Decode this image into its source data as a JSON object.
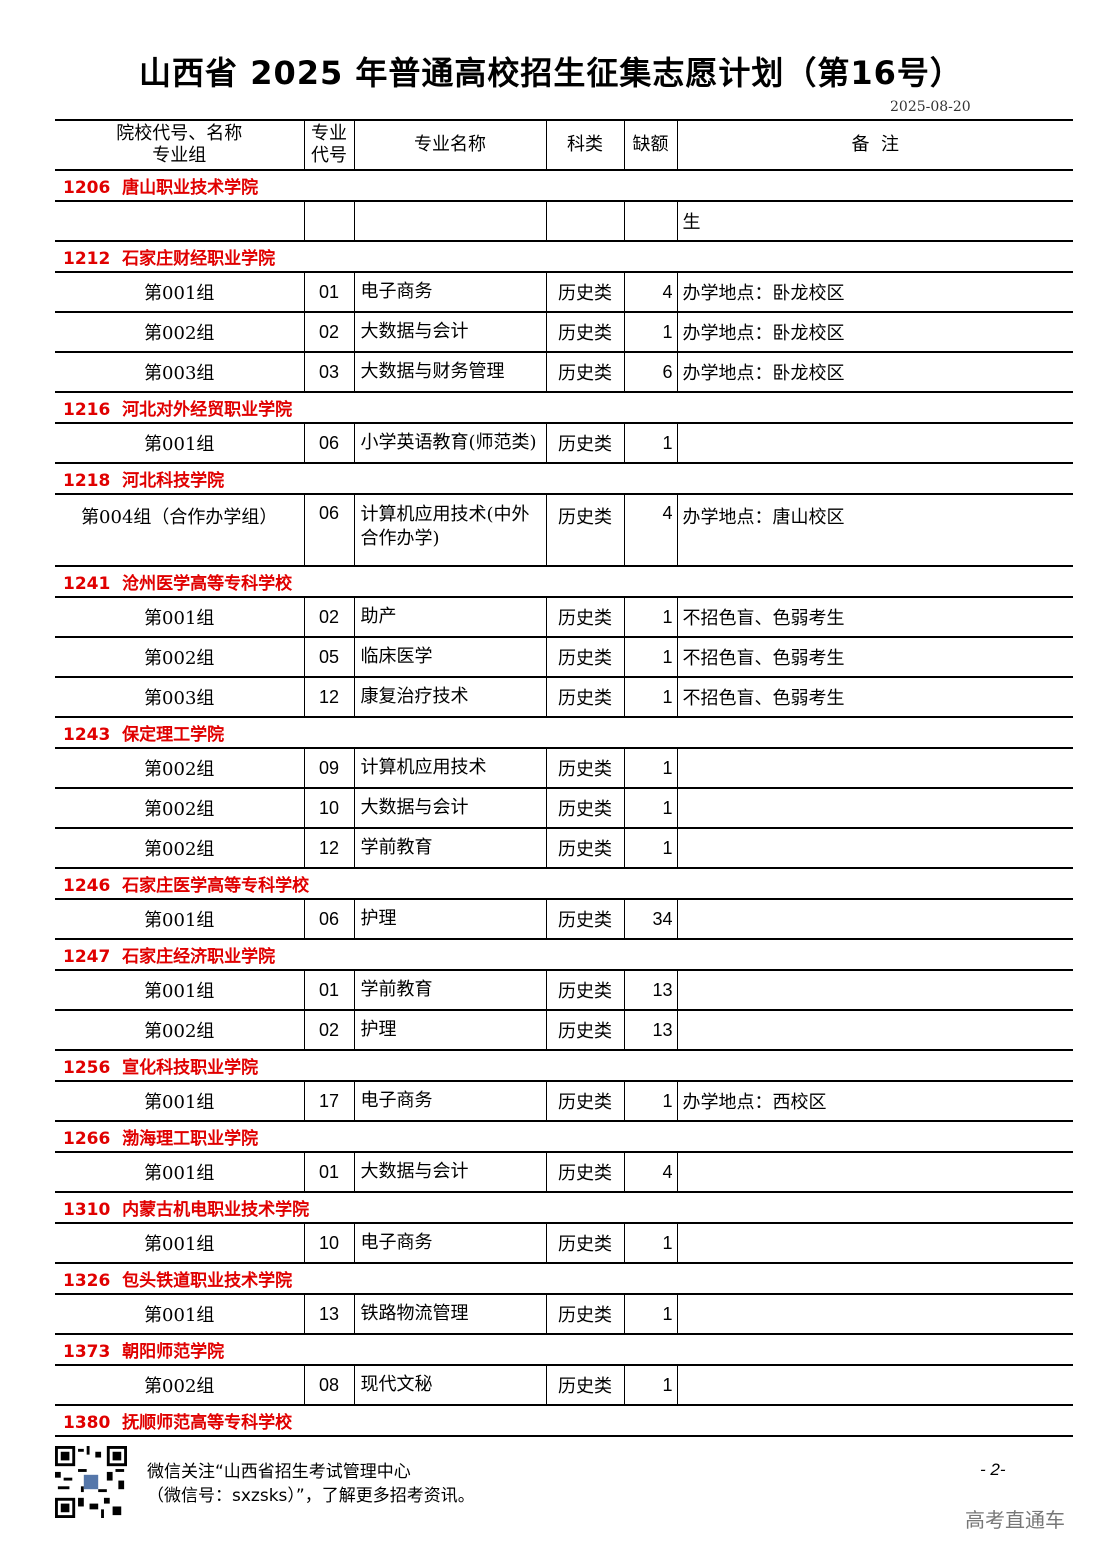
{
  "title": "山西省 2025 年普通高校招生征集志愿计划（第16号）",
  "date": "2025-08-20",
  "headers": {
    "school_line1": "院校代号、名称",
    "school_line2": "专业组",
    "major_code_line1": "专业",
    "major_code_line2": "代号",
    "major_name": "专业名称",
    "category": "科类",
    "quota": "缺额",
    "note": "备  注"
  },
  "sections": [
    {
      "school": "1206  唐山职业技术学院",
      "rows": [
        {
          "group": "",
          "code": "",
          "name": "",
          "category": "",
          "quota": "",
          "note": "生"
        }
      ]
    },
    {
      "school": "1212  石家庄财经职业学院",
      "rows": [
        {
          "group": "第001组",
          "code": "01",
          "name": "电子商务",
          "category": "历史类",
          "quota": "4",
          "note": "办学地点：卧龙校区"
        },
        {
          "group": "第002组",
          "code": "02",
          "name": "大数据与会计",
          "category": "历史类",
          "quota": "1",
          "note": "办学地点：卧龙校区"
        },
        {
          "group": "第003组",
          "code": "03",
          "name": "大数据与财务管理",
          "category": "历史类",
          "quota": "6",
          "note": "办学地点：卧龙校区"
        }
      ]
    },
    {
      "school": "1216  河北对外经贸职业学院",
      "rows": [
        {
          "group": "第001组",
          "code": "06",
          "name": "小学英语教育(师范类)",
          "category": "历史类",
          "quota": "1",
          "note": ""
        }
      ]
    },
    {
      "school": "1218  河北科技学院",
      "rows": [
        {
          "group": "第004组（合作办学组）",
          "code": "06",
          "name": "计算机应用技术(中外合作办学)",
          "category": "历史类",
          "quota": "4",
          "note": "办学地点：唐山校区",
          "tall": true
        }
      ]
    },
    {
      "school": "1241  沧州医学高等专科学校",
      "rows": [
        {
          "group": "第001组",
          "code": "02",
          "name": "助产",
          "category": "历史类",
          "quota": "1",
          "note": "不招色盲、色弱考生"
        },
        {
          "group": "第002组",
          "code": "05",
          "name": "临床医学",
          "category": "历史类",
          "quota": "1",
          "note": "不招色盲、色弱考生"
        },
        {
          "group": "第003组",
          "code": "12",
          "name": "康复治疗技术",
          "category": "历史类",
          "quota": "1",
          "note": "不招色盲、色弱考生"
        }
      ]
    },
    {
      "school": "1243  保定理工学院",
      "rows": [
        {
          "group": "第002组",
          "code": "09",
          "name": "计算机应用技术",
          "category": "历史类",
          "quota": "1",
          "note": ""
        },
        {
          "group": "第002组",
          "code": "10",
          "name": "大数据与会计",
          "category": "历史类",
          "quota": "1",
          "note": ""
        },
        {
          "group": "第002组",
          "code": "12",
          "name": "学前教育",
          "category": "历史类",
          "quota": "1",
          "note": ""
        }
      ]
    },
    {
      "school": "1246  石家庄医学高等专科学校",
      "rows": [
        {
          "group": "第001组",
          "code": "06",
          "name": "护理",
          "category": "历史类",
          "quota": "34",
          "note": ""
        }
      ]
    },
    {
      "school": "1247  石家庄经济职业学院",
      "rows": [
        {
          "group": "第001组",
          "code": "01",
          "name": "学前教育",
          "category": "历史类",
          "quota": "13",
          "note": ""
        },
        {
          "group": "第002组",
          "code": "02",
          "name": "护理",
          "category": "历史类",
          "quota": "13",
          "note": ""
        }
      ]
    },
    {
      "school": "1256  宣化科技职业学院",
      "rows": [
        {
          "group": "第001组",
          "code": "17",
          "name": "电子商务",
          "category": "历史类",
          "quota": "1",
          "note": "办学地点：西校区"
        }
      ]
    },
    {
      "school": "1266  渤海理工职业学院",
      "rows": [
        {
          "group": "第001组",
          "code": "01",
          "name": "大数据与会计",
          "category": "历史类",
          "quota": "4",
          "note": ""
        }
      ]
    },
    {
      "school": "1310  内蒙古机电职业技术学院",
      "rows": [
        {
          "group": "第001组",
          "code": "10",
          "name": "电子商务",
          "category": "历史类",
          "quota": "1",
          "note": ""
        }
      ]
    },
    {
      "school": "1326  包头铁道职业技术学院",
      "rows": [
        {
          "group": "第001组",
          "code": "13",
          "name": "铁路物流管理",
          "category": "历史类",
          "quota": "1",
          "note": ""
        }
      ]
    },
    {
      "school": "1373  朝阳师范学院",
      "rows": [
        {
          "group": "第002组",
          "code": "08",
          "name": "现代文秘",
          "category": "历史类",
          "quota": "1",
          "note": ""
        }
      ]
    },
    {
      "school": "1380  抚顺师范高等专科学校",
      "rows": []
    }
  ],
  "footer": {
    "line1": "微信关注“山西省招生考试管理中心",
    "line2": "（微信号：sxzsks）”，了解更多招考资讯。",
    "page": "- 2-",
    "brand": "高考直通车"
  },
  "colors": {
    "school_header": "#e00000",
    "brand": "#777777"
  }
}
